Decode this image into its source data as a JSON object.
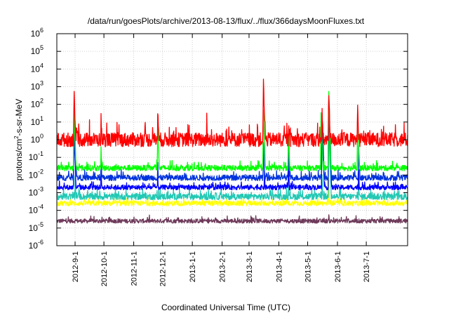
{
  "chart_data": {
    "type": "line",
    "title": "/data/run/goesPlots/archive/2013-08-13/flux/../flux/366daysMoonFluxes.txt",
    "ylabel": "protons/cm",
    "ylabel_sup": "2",
    "ylabel_rest": "-s-sr-MeV",
    "xlabel": "Coordinated Universal Time (UTC)",
    "y_scale": "log",
    "ylim": [
      1e-06,
      1000000.0
    ],
    "xlim": [
      "2012-08-13",
      "2013-08-13"
    ],
    "y_ticks": [
      {
        "base": "10",
        "exp": "-6",
        "value": 1e-06
      },
      {
        "base": "10",
        "exp": "-5",
        "value": 1e-05
      },
      {
        "base": "10",
        "exp": "-4",
        "value": 0.0001
      },
      {
        "base": "10",
        "exp": "-3",
        "value": 0.001
      },
      {
        "base": "10",
        "exp": "-2",
        "value": 0.01
      },
      {
        "base": "10",
        "exp": "-1",
        "value": 0.1
      },
      {
        "base": "10",
        "exp": "0",
        "value": 1
      },
      {
        "base": "10",
        "exp": "1",
        "value": 10
      },
      {
        "base": "10",
        "exp": "2",
        "value": 100
      },
      {
        "base": "10",
        "exp": "3",
        "value": 1000
      },
      {
        "base": "10",
        "exp": "4",
        "value": 10000
      },
      {
        "base": "10",
        "exp": "5",
        "value": 100000
      },
      {
        "base": "10",
        "exp": "6",
        "value": 1000000
      }
    ],
    "x_ticks": [
      "2012-9-1",
      "2012-10-1",
      "2012-11-1",
      "2012-12-1",
      "2013-1-1",
      "2013-2-1",
      "2013-3-1",
      "2013-4-1",
      "2013-5-1",
      "2013-6-1",
      "2013-7-1"
    ],
    "grid": true,
    "legend": "none",
    "series": [
      {
        "color": "#6e3a5a",
        "baseline": 2.5e-05,
        "spread": 0.12,
        "events": [
          [
            "2013-05-22",
            3e-05,
            0.05
          ]
        ]
      },
      {
        "color": "#ffff00",
        "baseline": 0.00025,
        "spread": 0.14,
        "events": [
          [
            "2013-05-23",
            0.006,
            1.5
          ]
        ]
      },
      {
        "color": "#22c8b4",
        "baseline": 0.0006,
        "spread": 0.18,
        "events": [
          [
            "2012-09-01",
            0.01,
            1.5
          ],
          [
            "2013-04-11",
            0.003,
            1.5
          ],
          [
            "2013-05-16",
            0.01,
            1.5
          ],
          [
            "2013-05-23",
            5,
            1.5
          ],
          [
            "2013-06-23",
            0.005,
            1.5
          ]
        ]
      },
      {
        "color": "#0000ff",
        "baseline": 0.002,
        "spread": 0.14,
        "events": [
          [
            "2012-08-31",
            2,
            1.5
          ],
          [
            "2012-09-28",
            0.02,
            1.5
          ],
          [
            "2012-11-26",
            0.01,
            1.5
          ],
          [
            "2013-03-17",
            0.02,
            1.5
          ],
          [
            "2013-04-11",
            0.05,
            1.5
          ],
          [
            "2013-05-16",
            5,
            1.5
          ],
          [
            "2013-05-23",
            200,
            1.8
          ],
          [
            "2013-06-23",
            0.02,
            1.5
          ]
        ]
      },
      {
        "color": "#0033dd",
        "baseline": 0.007,
        "spread": 0.16,
        "events": [
          [
            "2012-08-31",
            30,
            1.5
          ],
          [
            "2012-09-28",
            0.1,
            1.5
          ],
          [
            "2012-11-26",
            0.05,
            1.5
          ],
          [
            "2013-03-16",
            0.5,
            1.5
          ],
          [
            "2013-04-11",
            0.5,
            1.5
          ],
          [
            "2013-05-16",
            20,
            1.5
          ],
          [
            "2013-05-23",
            300,
            1.8
          ],
          [
            "2013-06-23",
            0.5,
            1.5
          ]
        ]
      },
      {
        "color": "#00ff00",
        "baseline": 0.025,
        "spread": 0.16,
        "events": [
          [
            "2012-08-31",
            30,
            1.5
          ],
          [
            "2012-09-28",
            0.3,
            1.5
          ],
          [
            "2012-11-26",
            5,
            1.5
          ],
          [
            "2013-03-16",
            30,
            1.5
          ],
          [
            "2013-04-11",
            3,
            1.5
          ],
          [
            "2013-05-15",
            30,
            1.5
          ],
          [
            "2013-05-23",
            400,
            1.8
          ],
          [
            "2013-06-22",
            10,
            1.5
          ]
        ]
      },
      {
        "color": "#ff0000",
        "baseline": 1.0,
        "spread": 0.4,
        "events": [
          [
            "2012-08-31",
            800,
            2.0
          ],
          [
            "2012-09-28",
            20,
            1.5
          ],
          [
            "2012-11-26",
            50,
            1.5
          ],
          [
            "2013-01-16",
            10,
            1.5
          ],
          [
            "2013-03-16",
            1500,
            1.5
          ],
          [
            "2013-04-11",
            5,
            1.5
          ],
          [
            "2013-05-16",
            30,
            1.5
          ],
          [
            "2013-05-23",
            400,
            1.8
          ],
          [
            "2013-06-22",
            80,
            1.5
          ]
        ]
      }
    ]
  }
}
